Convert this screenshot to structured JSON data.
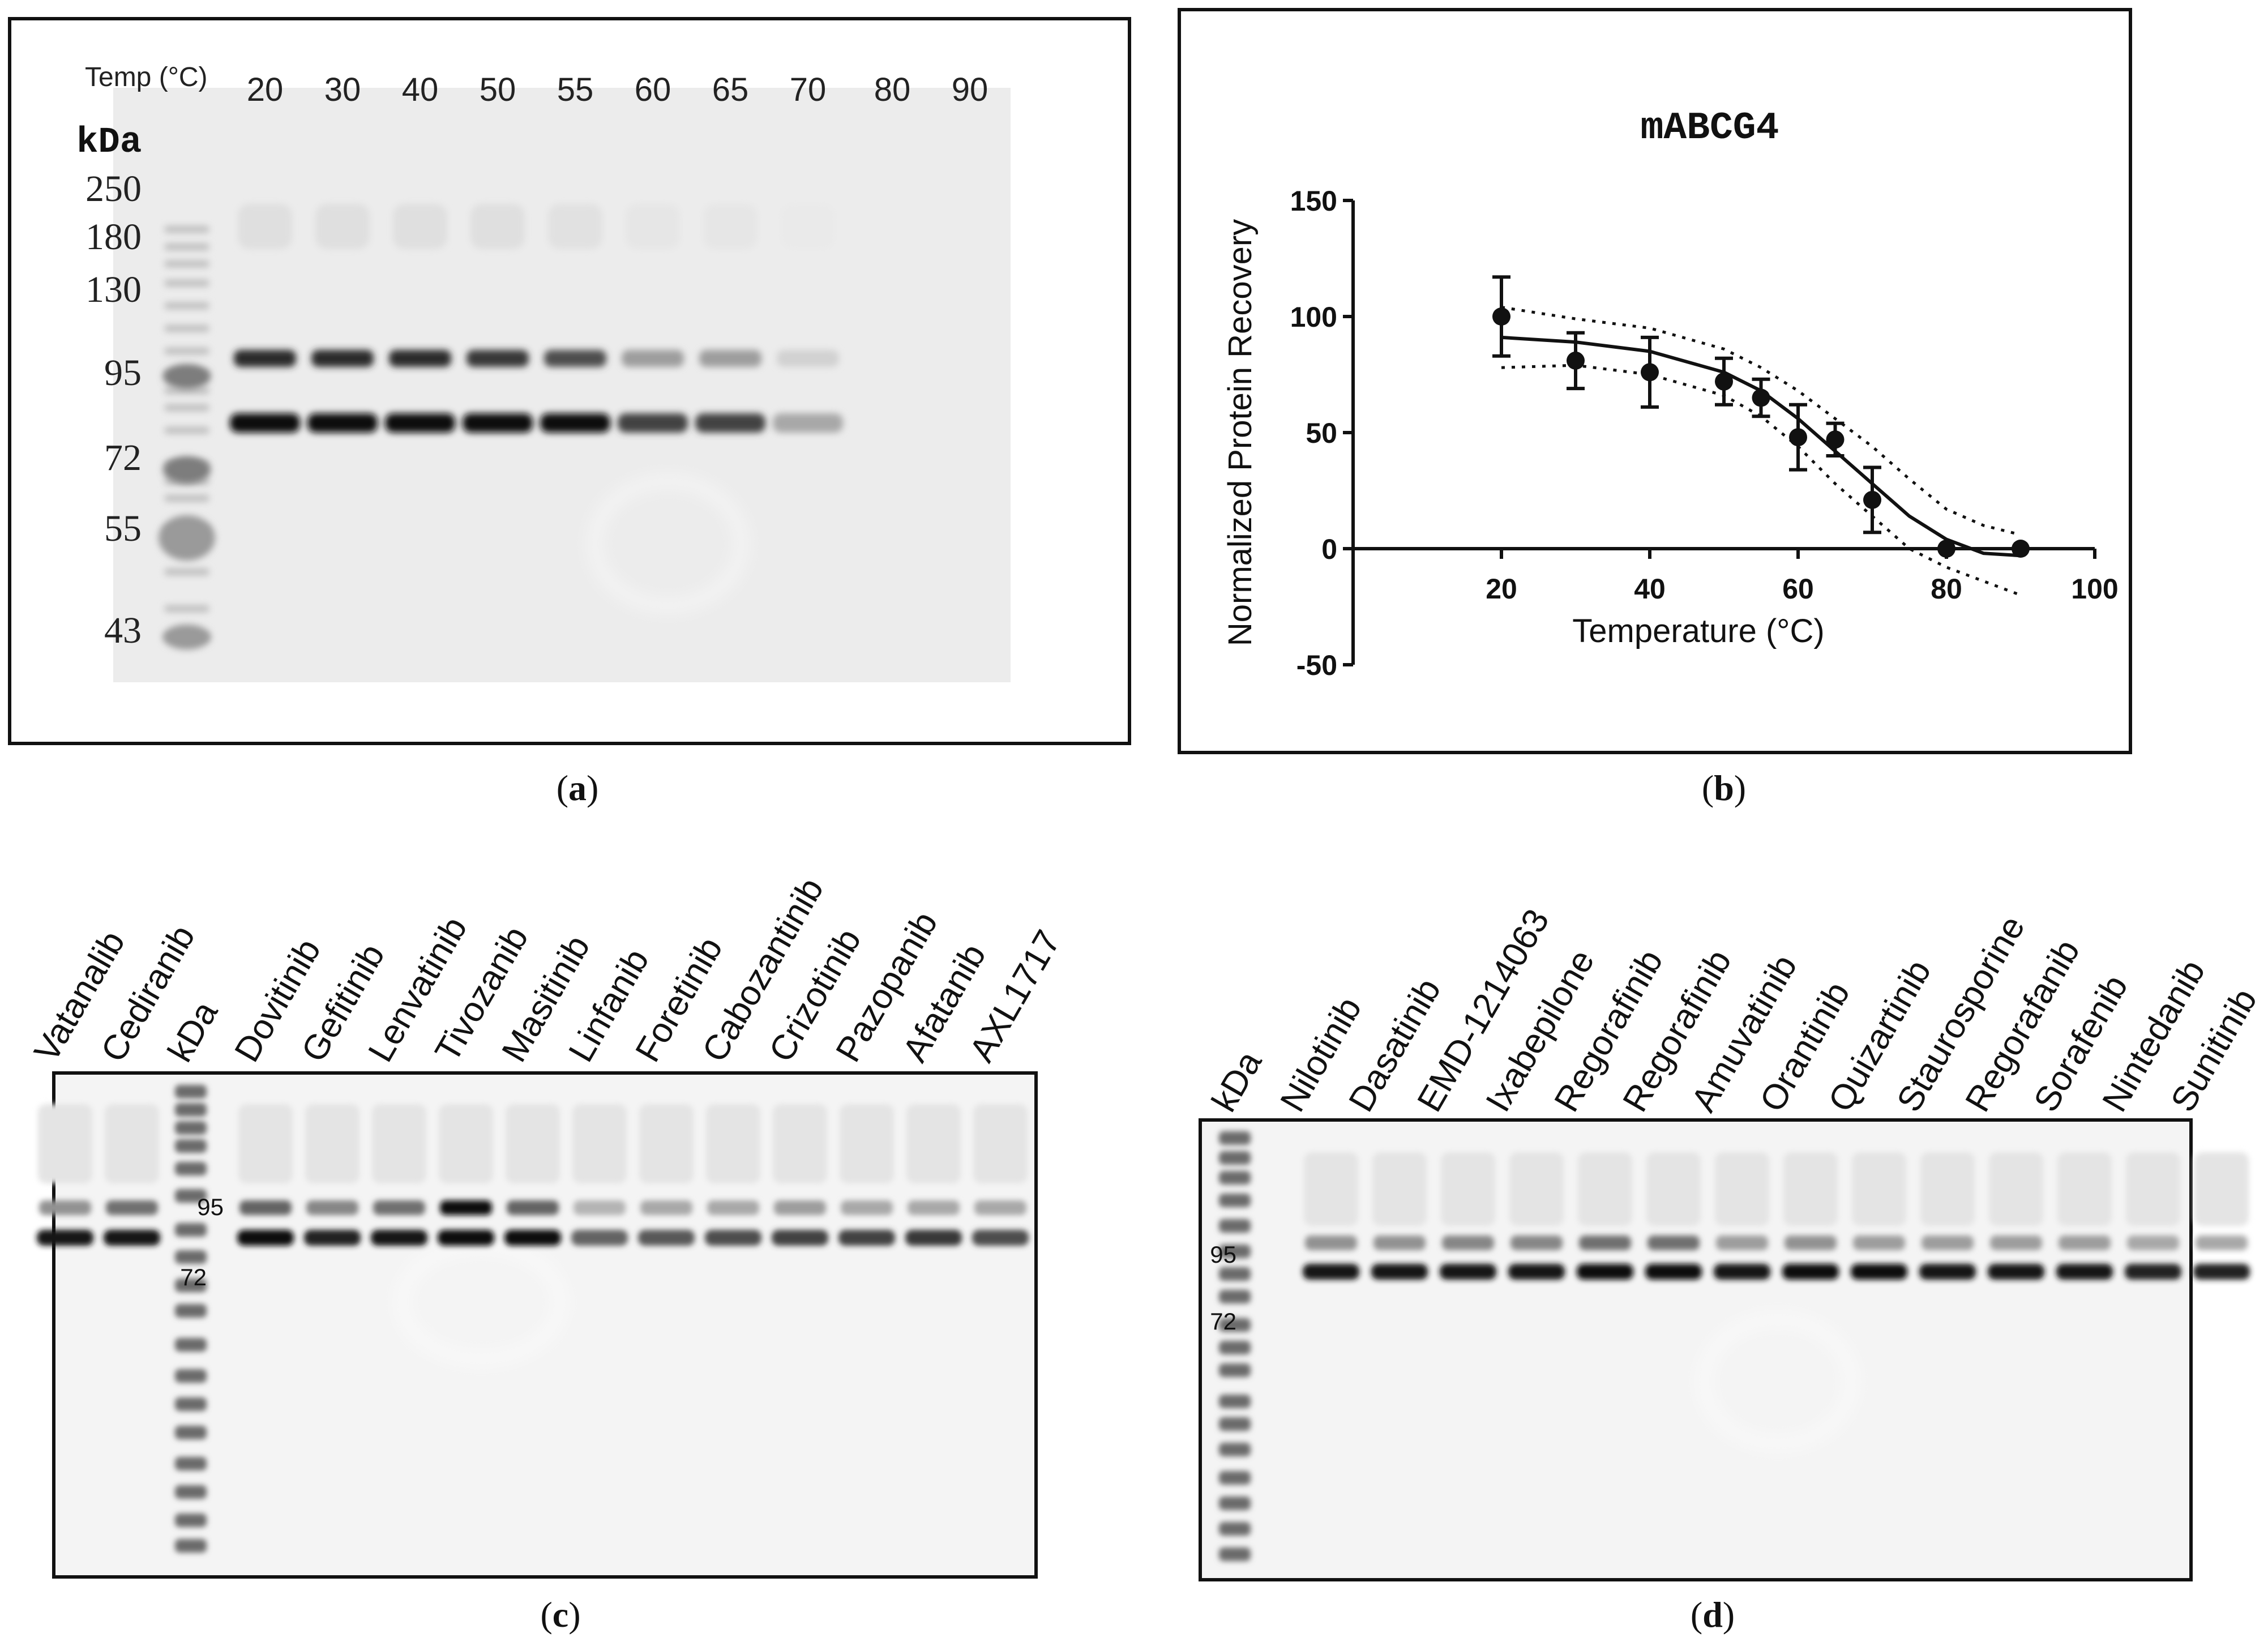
{
  "panel_a": {
    "temp_label": "Temp (°C)",
    "temps": [
      "20",
      "30",
      "40",
      "50",
      "55",
      "60",
      "65",
      "70",
      "80",
      "90"
    ],
    "kda_label": "kDa",
    "markers": [
      "250",
      "180",
      "130",
      "95",
      "72",
      "55",
      "43"
    ],
    "band_intensity_upper": [
      0.85,
      0.85,
      0.85,
      0.8,
      0.7,
      0.35,
      0.35,
      0.12,
      0,
      0
    ],
    "band_intensity_lower": [
      1,
      1,
      1,
      1,
      1,
      0.75,
      0.75,
      0.3,
      0,
      0
    ],
    "caption": "a"
  },
  "panel_b": {
    "caption": "b",
    "chart_data": {
      "type": "scatter",
      "title": "mABCG4",
      "xlabel": "Temperature (°C)",
      "ylabel": "Normalized Protein Recovery",
      "xlim": [
        0,
        100
      ],
      "ylim": [
        -50,
        150
      ],
      "xticks": [
        "20",
        "40",
        "60",
        "80",
        "100"
      ],
      "yticks": [
        "150",
        "100",
        "50",
        "0",
        "-50"
      ],
      "x": [
        20,
        30,
        40,
        50,
        55,
        60,
        65,
        70,
        80,
        90
      ],
      "y": [
        100,
        81,
        76,
        72,
        65,
        48,
        47,
        21,
        0,
        0
      ],
      "error": [
        17,
        12,
        15,
        10,
        8,
        14,
        7,
        14,
        0,
        0
      ],
      "fit_curve": {
        "x": [
          20,
          30,
          40,
          50,
          55,
          60,
          65,
          70,
          75,
          80,
          85,
          90
        ],
        "y": [
          91,
          89,
          85,
          76,
          68,
          56,
          42,
          28,
          14,
          4,
          -2,
          -3
        ]
      },
      "ci_upper": {
        "x": [
          20,
          30,
          40,
          50,
          55,
          60,
          65,
          70,
          75,
          80,
          85,
          90
        ],
        "y": [
          104,
          99,
          95,
          86,
          78,
          68,
          56,
          44,
          30,
          17,
          10,
          6
        ]
      },
      "ci_lower": {
        "x": [
          20,
          30,
          40,
          50,
          55,
          60,
          65,
          70,
          75,
          80,
          85,
          90
        ],
        "y": [
          78,
          79,
          75,
          66,
          57,
          44,
          28,
          14,
          0,
          -8,
          -14,
          -20
        ]
      },
      "grid": false
    }
  },
  "panel_c": {
    "caption": "c",
    "lanes": [
      "Vatanalib",
      "Cediranib",
      "kDa",
      "Dovitinib",
      "Gefitinib",
      "Lenvatinib",
      "Tivozanib",
      "Masitinib",
      "Linfanib",
      "Foretinib",
      "Cabozantinib",
      "Crizotinib",
      "Pazopanib",
      "Afatanib",
      "AXL1717"
    ],
    "markers": [
      "95",
      "72"
    ],
    "band_intensity_upper": [
      0.4,
      0.55,
      0,
      0.6,
      0.45,
      0.55,
      1,
      0.6,
      0.25,
      0.3,
      0.3,
      0.35,
      0.3,
      0.3,
      0.3
    ],
    "band_intensity_lower": [
      0.95,
      0.95,
      0,
      1,
      0.9,
      0.95,
      1,
      1,
      0.6,
      0.65,
      0.7,
      0.75,
      0.75,
      0.8,
      0.7
    ]
  },
  "panel_d": {
    "caption": "d",
    "lanes": [
      "kDa",
      "Nilotinib",
      "Dasatinib",
      "EMD-1214063",
      "Ixabepilone",
      "Regorafinib",
      "Regorafinib",
      "Amuvatinib",
      "Orantinib",
      "Quizartinib",
      "Staurosporine",
      "Regorafanib",
      "Sorafenib",
      "Nintedanib",
      "Sunitinib"
    ],
    "markers": [
      "95",
      "72"
    ],
    "band_intensity_upper": [
      0,
      0.4,
      0.4,
      0.45,
      0.45,
      0.55,
      0.55,
      0.35,
      0.4,
      0.35,
      0.35,
      0.35,
      0.35,
      0.3,
      0.3
    ],
    "band_intensity_lower": [
      0,
      0.95,
      0.95,
      0.95,
      0.95,
      1,
      1,
      0.95,
      1,
      1,
      0.95,
      0.95,
      0.95,
      0.9,
      0.9
    ]
  }
}
